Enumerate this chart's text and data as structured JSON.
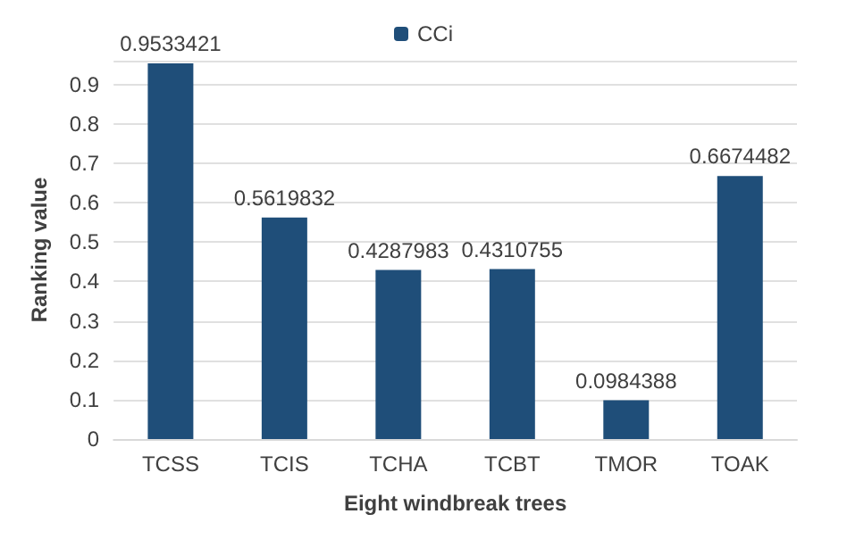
{
  "chart_data": {
    "type": "bar",
    "xlabel": "Eight windbreak trees",
    "ylabel": "Ranking value",
    "categories": [
      "TCSS",
      "TCIS",
      "TCHA",
      "TCBT",
      "TMOR",
      "TOAK"
    ],
    "series": [
      {
        "name": "CCi",
        "color": "#1f4e79",
        "values": [
          0.9533421,
          0.5619832,
          0.4287983,
          0.4310755,
          0.0984388,
          0.6674482
        ]
      }
    ],
    "ylim": [
      0,
      0.96
    ],
    "yticks": [
      0,
      0.1,
      0.2,
      0.3,
      0.4,
      0.5,
      0.6,
      0.7,
      0.8,
      0.9,
      {
        "value": 0.96,
        "label": null
      }
    ],
    "grid": "y",
    "legend": "top",
    "data_labels": true
  }
}
